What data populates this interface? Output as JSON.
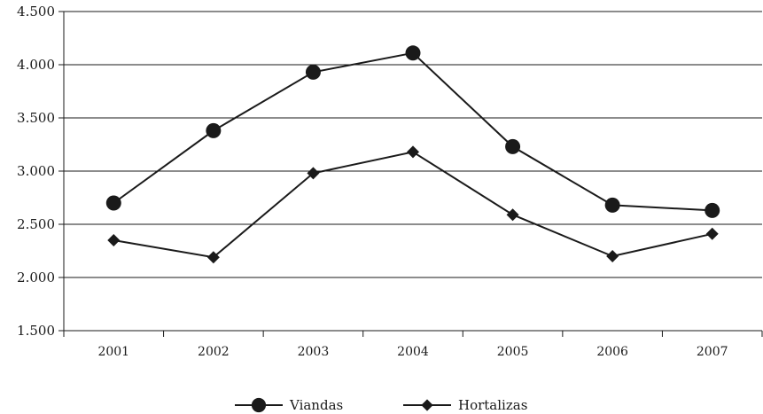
{
  "chart_data": {
    "type": "line",
    "categories": [
      "2001",
      "2002",
      "2003",
      "2004",
      "2005",
      "2006",
      "2007"
    ],
    "yticks": [
      "1.500",
      "2.000",
      "2.500",
      "3.000",
      "3.500",
      "4.000",
      "4.500"
    ],
    "ylim": [
      1500,
      4500
    ],
    "grid": true,
    "legend_position": "bottom-center",
    "series": [
      {
        "name": "Viandas",
        "marker": "circle",
        "color": "#1a1a1a",
        "values": [
          2700,
          3380,
          3930,
          4110,
          3230,
          2680,
          2630
        ]
      },
      {
        "name": "Hortalizas",
        "marker": "diamond",
        "color": "#1a1a1a",
        "values": [
          2350,
          2190,
          2980,
          3180,
          2590,
          2200,
          2410
        ]
      }
    ]
  }
}
